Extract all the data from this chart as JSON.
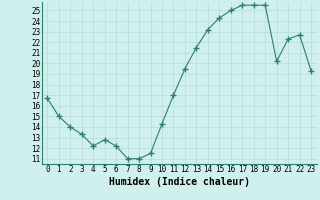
{
  "xlabel": "Humidex (Indice chaleur)",
  "x": [
    0,
    1,
    2,
    3,
    4,
    5,
    6,
    7,
    8,
    9,
    10,
    11,
    12,
    13,
    14,
    15,
    16,
    17,
    18,
    19,
    20,
    21,
    22,
    23
  ],
  "y": [
    16.7,
    15.0,
    14.0,
    13.3,
    12.2,
    12.8,
    12.2,
    11.0,
    11.0,
    11.5,
    14.3,
    17.0,
    19.5,
    21.5,
    23.2,
    24.3,
    25.0,
    25.5,
    25.5,
    25.5,
    20.2,
    22.3,
    22.7,
    19.3
  ],
  "line_color": "#2e7d6e",
  "marker": "+",
  "marker_size": 4,
  "bg_color": "#cff0ec",
  "grid_color": "#b8dbd6",
  "ylim": [
    10.5,
    25.8
  ],
  "xlim": [
    -0.5,
    23.5
  ],
  "yticks": [
    11,
    12,
    13,
    14,
    15,
    16,
    17,
    18,
    19,
    20,
    21,
    22,
    23,
    24,
    25
  ],
  "xticks": [
    0,
    1,
    2,
    3,
    4,
    5,
    6,
    7,
    8,
    9,
    10,
    11,
    12,
    13,
    14,
    15,
    16,
    17,
    18,
    19,
    20,
    21,
    22,
    23
  ],
  "tick_fontsize": 5.5,
  "label_fontsize": 7.0
}
